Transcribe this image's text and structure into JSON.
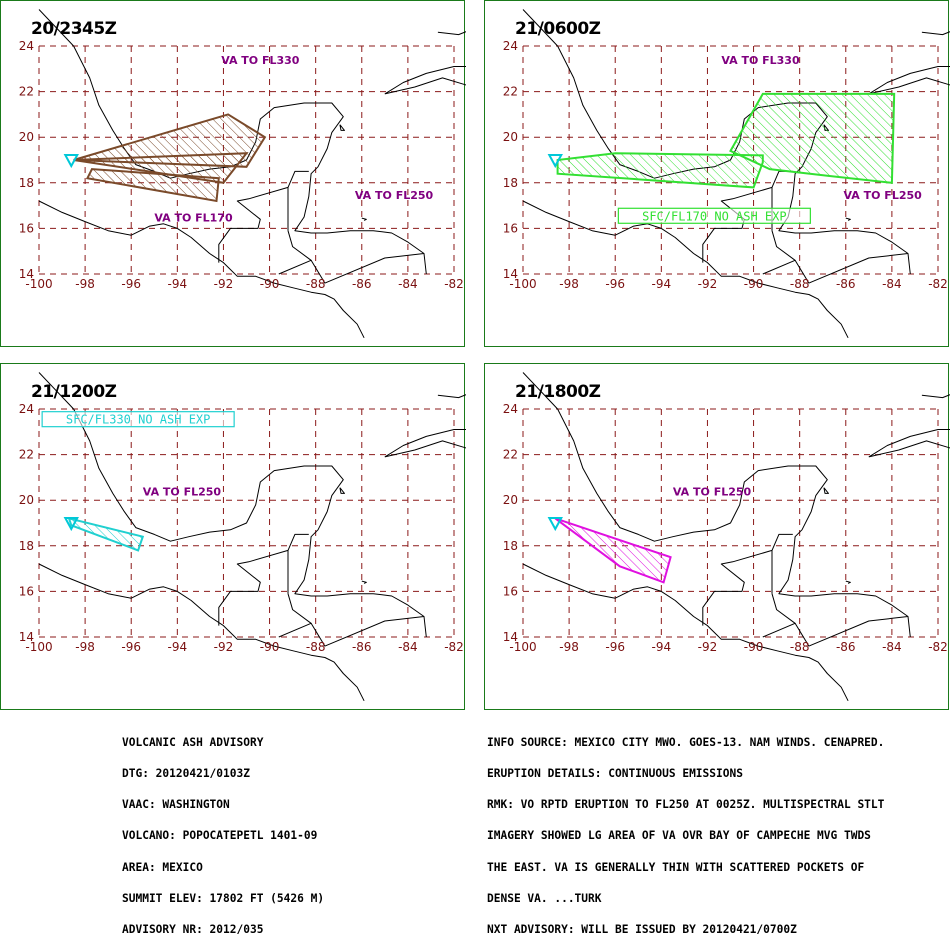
{
  "colors": {
    "border": "#1a7a1a",
    "grid": "#8b1a1a",
    "tick_label": "#7a1010",
    "level_label": "#800080",
    "coast": "#000000",
    "volcano": "#00c8d8",
    "t0_ash": "#7a4a2a",
    "t6_ash": "#32e032",
    "t12_ash": "#20d0d0",
    "t18_ash": "#e010e0"
  },
  "axes": {
    "lon_ticks": [
      "-100",
      "-98",
      "-96",
      "-94",
      "-92",
      "-90",
      "-88",
      "-86",
      "-84",
      "-82"
    ],
    "lat_ticks": [
      "24",
      "22",
      "20",
      "18",
      "16",
      "14"
    ]
  },
  "panels": [
    {
      "time": "20/2345Z",
      "labels": [
        "VA TO FL330",
        "VA TO FL250",
        "VA TO FL170"
      ],
      "boxed_label": "",
      "ash_color": "#7a4a2a",
      "polygons": [
        [
          [
            -98.5,
            19.0
          ],
          [
            -91.8,
            21.0
          ],
          [
            -90.2,
            20.0
          ],
          [
            -91.0,
            18.7
          ],
          [
            -98.5,
            19.0
          ]
        ],
        [
          [
            -98.5,
            19.0
          ],
          [
            -91.0,
            19.3
          ],
          [
            -92.0,
            18.0
          ],
          [
            -98.5,
            19.0
          ]
        ],
        [
          [
            -97.7,
            18.6
          ],
          [
            -92.2,
            18.2
          ],
          [
            -92.3,
            17.2
          ],
          [
            -97.9,
            18.2
          ],
          [
            -97.7,
            18.6
          ]
        ]
      ]
    },
    {
      "time": "21/0600Z",
      "labels": [
        "VA TO FL330",
        "VA TO FL250"
      ],
      "boxed_label": "SFC/FL170 NO ASH EXP",
      "ash_color": "#32e032",
      "polygons": [
        [
          [
            -98.5,
            19.0
          ],
          [
            -98.5,
            18.4
          ],
          [
            -90.0,
            17.8
          ],
          [
            -89.6,
            18.9
          ],
          [
            -89.6,
            19.2
          ],
          [
            -96.0,
            19.3
          ],
          [
            -98.5,
            19.0
          ]
        ],
        [
          [
            -91.0,
            19.4
          ],
          [
            -89.6,
            21.9
          ],
          [
            -83.9,
            21.9
          ],
          [
            -84.0,
            18.0
          ],
          [
            -86.7,
            18.3
          ],
          [
            -89.3,
            18.6
          ],
          [
            -91.0,
            19.4
          ]
        ]
      ]
    },
    {
      "time": "21/1200Z",
      "labels": [
        "VA TO FL250"
      ],
      "boxed_label": "SFC/FL330 NO ASH EXP",
      "ash_color": "#20d0d0",
      "polygons": [
        [
          [
            -98.7,
            19.2
          ],
          [
            -98.6,
            18.9
          ],
          [
            -95.7,
            17.8
          ],
          [
            -95.5,
            18.4
          ],
          [
            -98.7,
            19.2
          ]
        ]
      ]
    },
    {
      "time": "21/1800Z",
      "labels": [
        "VA TO FL250"
      ],
      "boxed_label": "",
      "ash_color": "#e010e0",
      "polygons": [
        [
          [
            -98.6,
            19.2
          ],
          [
            -95.8,
            17.1
          ],
          [
            -93.9,
            16.4
          ],
          [
            -93.6,
            17.5
          ],
          [
            -98.6,
            19.2
          ]
        ]
      ]
    }
  ],
  "advisory_left": [
    "VOLCANIC ASH ADVISORY",
    "DTG: 20120421/0103Z",
    "VAAC: WASHINGTON",
    "VOLCANO: POPOCATEPETL 1401-09",
    "AREA: MEXICO",
    "SUMMIT ELEV: 17802 FT (5426 M)",
    "ADVISORY NR: 2012/035"
  ],
  "advisory_right": [
    "INFO SOURCE: MEXICO CITY MWO. GOES-13. NAM WINDS. CENAPRED.",
    "ERUPTION DETAILS: CONTINUOUS EMISSIONS",
    "RMK: VO RPTD ERUPTION TO FL250 AT 0025Z. MULTISPECTRAL STLT",
    "IMAGERY SHOWED LG AREA OF VA OVR BAY OF CAMPECHE MVG TWDS",
    "THE EAST. VA IS GENERALLY THIN WITH SCATTERED POCKETS OF",
    "DENSE VA. ...TURK",
    "NXT ADVISORY: WILL BE ISSUED BY 20120421/0700Z"
  ]
}
